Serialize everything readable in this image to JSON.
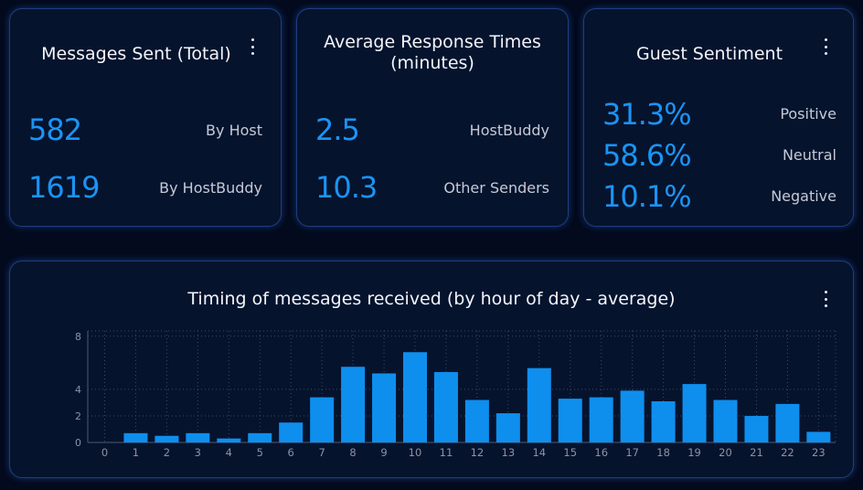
{
  "cards": {
    "messages": {
      "title": "Messages Sent (Total)",
      "rows": [
        {
          "value": "582",
          "label": "By Host"
        },
        {
          "value": "1619",
          "label": "By HostBuddy"
        }
      ]
    },
    "response": {
      "title_line1": "Average Response Times",
      "title_line2": "(minutes)",
      "rows": [
        {
          "value": "2.5",
          "label": "HostBuddy"
        },
        {
          "value": "10.3",
          "label": "Other Senders"
        }
      ]
    },
    "sentiment": {
      "title": "Guest Sentiment",
      "rows": [
        {
          "value": "31.3%",
          "label": "Positive"
        },
        {
          "value": "58.6%",
          "label": "Neutral"
        },
        {
          "value": "10.1%",
          "label": "Negative"
        }
      ]
    }
  },
  "colors": {
    "accent": "#1a94f4",
    "bar": "#0e8fee",
    "background": "#030a1d",
    "card": "#06132d",
    "border": "#1d3f7e"
  },
  "icons": {
    "menu": "kebab-menu-icon"
  },
  "chart_data": {
    "type": "bar",
    "title": "Timing of messages received (by hour of day - average)",
    "xlabel": "",
    "ylabel": "",
    "categories": [
      "0",
      "1",
      "2",
      "3",
      "4",
      "5",
      "6",
      "7",
      "8",
      "9",
      "10",
      "11",
      "12",
      "13",
      "14",
      "15",
      "16",
      "17",
      "18",
      "19",
      "20",
      "21",
      "22",
      "23"
    ],
    "values": [
      0,
      0.7,
      0.5,
      0.7,
      0.3,
      0.7,
      1.5,
      3.4,
      5.7,
      5.2,
      6.8,
      5.3,
      3.2,
      2.2,
      5.6,
      3.3,
      3.4,
      3.9,
      3.1,
      4.4,
      3.2,
      2.0,
      2.9,
      0.8
    ],
    "yticks": [
      "0",
      "2",
      "4",
      "8"
    ],
    "ylim": [
      0,
      8.4
    ],
    "grid": true
  }
}
